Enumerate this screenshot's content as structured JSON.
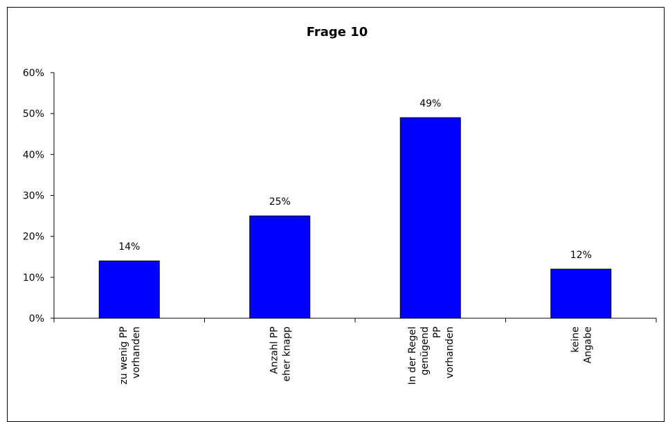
{
  "chart_data": {
    "type": "bar",
    "title": "Frage 10",
    "categories": [
      [
        "zu wenig PP",
        "vorhanden"
      ],
      [
        "Anzahl PP",
        "eher knapp"
      ],
      [
        "In der Regel",
        "genügend",
        "PP",
        "vorhanden"
      ],
      [
        "keine",
        "Angabe"
      ]
    ],
    "values": [
      14,
      25,
      49,
      12
    ],
    "value_labels": [
      "14%",
      "25%",
      "49%",
      "12%"
    ],
    "ylim": [
      0,
      60
    ],
    "y_ticks": [
      0,
      10,
      20,
      30,
      40,
      50,
      60
    ],
    "y_tick_labels": [
      "0%",
      "10%",
      "20%",
      "30%",
      "40%",
      "50%",
      "60%"
    ],
    "bar_color": "#0000ff",
    "grid": false,
    "legend": "none"
  }
}
